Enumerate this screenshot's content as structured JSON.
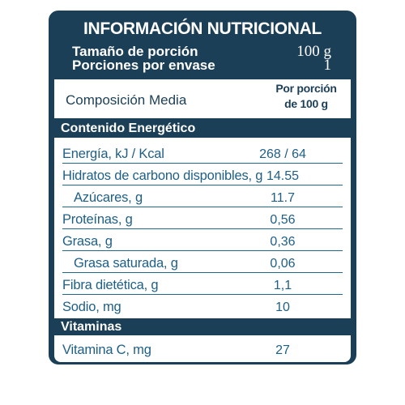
{
  "title": "INFORMACIÓN NUTRICIONAL",
  "serving": {
    "size_label": "Tamaño de porción",
    "size_value": "100 g",
    "count_label": "Porciones por envase",
    "count_value": "1"
  },
  "columns": {
    "composition": "Composición Media",
    "per_portion_line1": "Por porción",
    "per_portion_line2": "de 100 g"
  },
  "sections": {
    "energy": "Contenido Energético",
    "vitamins": "Vitaminas"
  },
  "nutrients": [
    {
      "name": "Energía, kJ / Kcal",
      "value": "268 / 64"
    },
    {
      "name": "Hidratos de carbono disponibles, g",
      "value": "14.55"
    },
    {
      "name": "Azúcares, g",
      "value": "11.7"
    },
    {
      "name": "Proteínas, g",
      "value": "0,56"
    },
    {
      "name": "Grasa, g",
      "value": "0,36"
    },
    {
      "name": "Grasa saturada, g",
      "value": "0,06"
    },
    {
      "name": "Fibra dietética, g",
      "value": "1,1"
    },
    {
      "name": "Sodio, mg",
      "value": "10"
    }
  ],
  "vitamins": [
    {
      "name": "Vitamina C, mg",
      "value": "27"
    }
  ],
  "colors": {
    "panel": "#1b3f57",
    "text": "#1e5f86",
    "rule": "#1e6a8e"
  }
}
